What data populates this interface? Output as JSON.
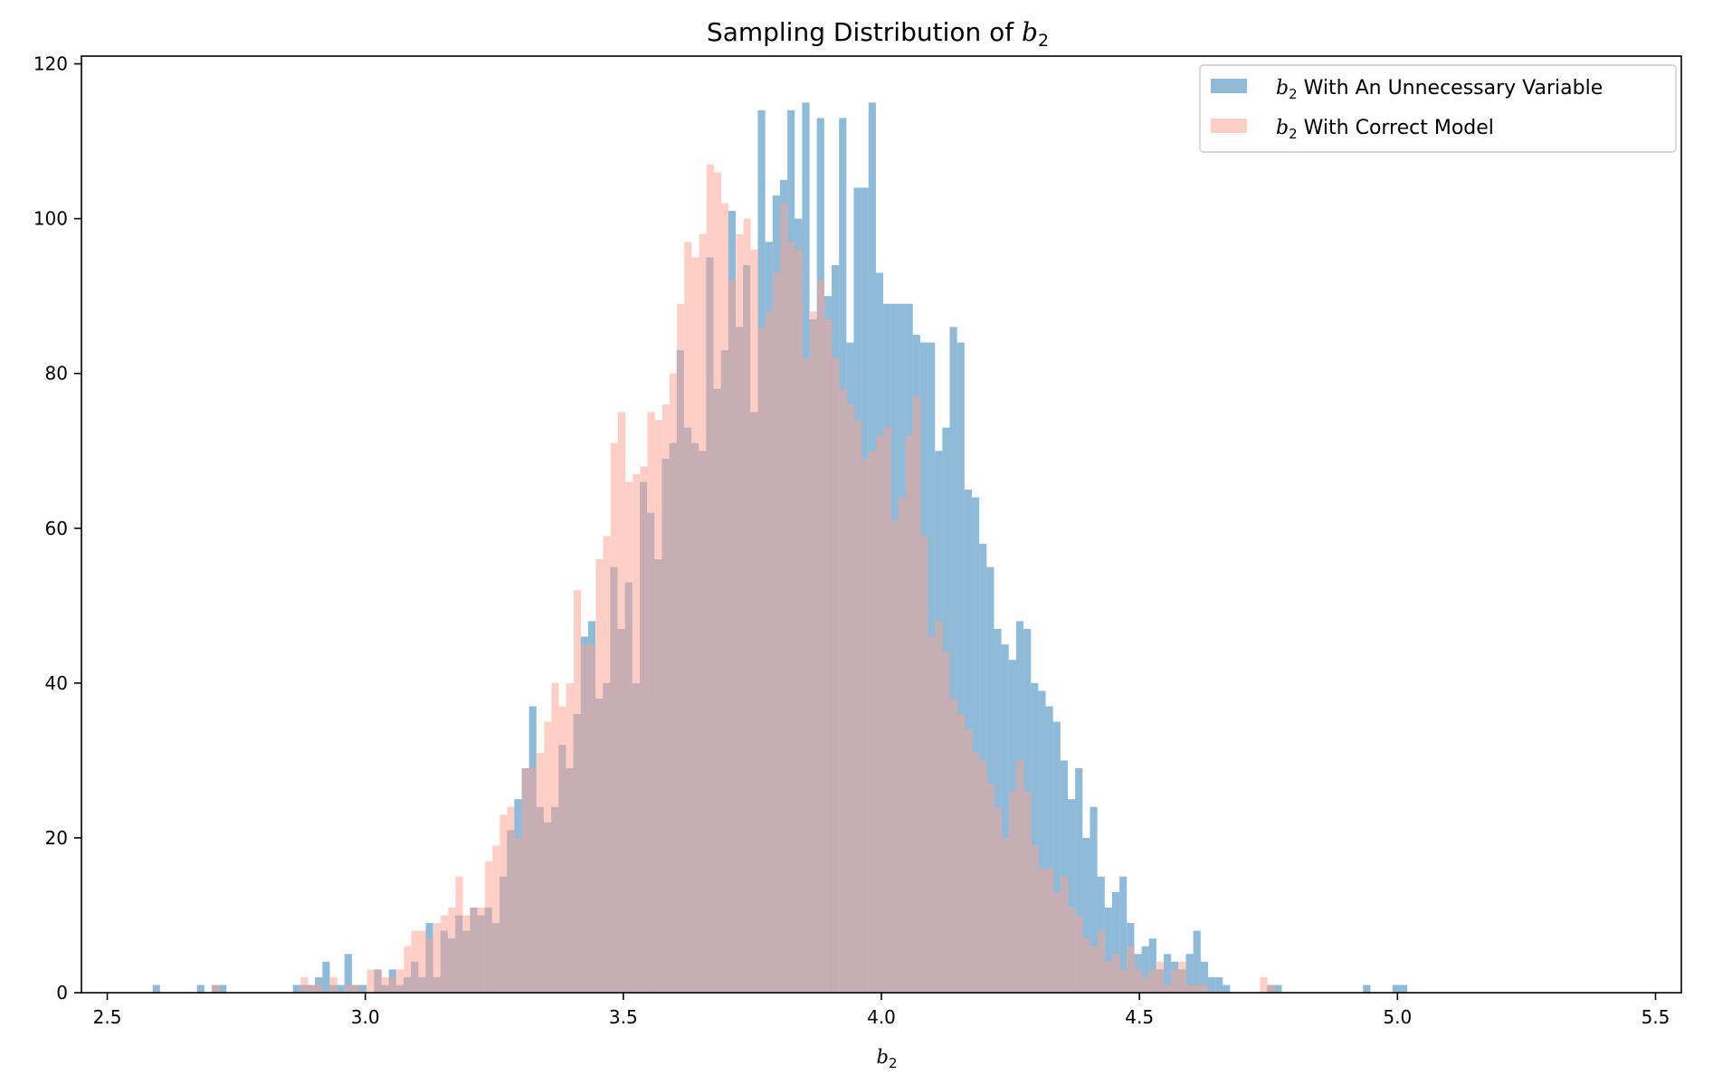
{
  "chart_data": {
    "type": "bar",
    "title_prefix": "Sampling Distribution of ",
    "title_symbol": "b",
    "title_subscript": "2",
    "xlabel_symbol": "b",
    "xlabel_subscript": "2",
    "xlim": [
      2.45,
      5.55
    ],
    "ylim": [
      0,
      121
    ],
    "xticks": [
      2.5,
      3.0,
      3.5,
      4.0,
      4.5,
      5.0,
      5.5
    ],
    "xtick_labels": [
      "2.5",
      "3.0",
      "3.5",
      "4.0",
      "4.5",
      "5.0",
      "5.5"
    ],
    "yticks": [
      0,
      20,
      40,
      60,
      80,
      100,
      120
    ],
    "ytick_labels": [
      "0",
      "20",
      "40",
      "60",
      "80",
      "100",
      "120"
    ],
    "legend_position": "top-right",
    "colors": {
      "blue": "#1f77b4",
      "salmon": "#ff9f8f",
      "axis": "#000000"
    },
    "series": [
      {
        "name_symbol": "b",
        "name_subscript": "2",
        "name_rest": " With An Unnecessary Variable",
        "color": "#1f77b4",
        "alpha": 0.5,
        "bin_start": 2.588,
        "bin_width": 0.0143,
        "values": [
          1,
          0,
          0,
          0,
          0,
          0,
          1,
          0,
          1,
          1,
          0,
          0,
          0,
          0,
          0,
          0,
          0,
          0,
          0,
          1,
          1,
          1,
          2,
          4,
          1,
          1,
          5,
          1,
          1,
          0,
          3,
          1,
          3,
          1,
          2,
          4,
          2,
          9,
          2,
          8,
          7,
          10,
          8,
          11,
          10,
          11,
          9,
          15,
          21,
          25,
          29,
          37,
          24,
          22,
          24,
          32,
          29,
          36,
          46,
          48,
          38,
          40,
          55,
          47,
          53,
          40,
          66,
          62,
          56,
          69,
          71,
          83,
          73,
          71,
          70,
          95,
          78,
          83,
          101,
          86,
          94,
          75,
          114,
          97,
          103,
          105,
          114,
          100,
          115,
          87,
          113,
          90,
          94,
          113,
          84,
          104,
          104,
          115,
          93,
          89,
          89,
          89,
          89,
          85,
          84,
          84,
          70,
          73,
          86,
          84,
          65,
          64,
          58,
          55,
          47,
          45,
          43,
          48,
          47,
          40,
          39,
          37,
          35,
          30,
          25,
          29,
          20,
          24,
          15,
          11,
          13,
          15,
          9,
          5,
          6,
          7,
          3,
          5,
          4,
          3,
          5,
          8,
          4,
          2,
          2,
          1,
          0,
          0,
          0,
          0,
          0,
          1,
          1,
          0,
          0,
          0,
          0,
          0,
          0,
          0,
          0,
          0,
          0,
          0,
          1,
          0,
          0,
          0,
          1,
          1
        ]
      },
      {
        "name_symbol": "b",
        "name_subscript": "2",
        "name_rest": " With Correct Model",
        "color": "#ff9f8f",
        "alpha": 0.5,
        "bin_start": 2.703,
        "bin_width": 0.0143,
        "values": [
          1,
          0,
          0,
          0,
          0,
          0,
          0,
          0,
          0,
          0,
          0,
          0,
          2,
          1,
          1,
          0,
          2,
          0,
          1,
          1,
          0,
          3,
          3,
          2,
          2,
          3,
          6,
          8,
          8,
          7,
          9,
          10,
          11,
          15,
          10,
          11,
          11,
          17,
          19,
          23,
          24,
          20,
          29,
          29,
          31,
          35,
          40,
          37,
          40,
          52,
          45,
          45,
          56,
          59,
          71,
          75,
          66,
          67,
          68,
          75,
          74,
          76,
          80,
          89,
          97,
          95,
          98,
          107,
          106,
          102,
          92,
          98,
          100,
          96,
          86,
          88,
          93,
          102,
          97,
          96,
          82,
          88,
          92,
          87,
          82,
          78,
          76,
          74,
          69,
          70,
          72,
          73,
          61,
          64,
          72,
          77,
          59,
          46,
          48,
          44,
          38,
          36,
          34,
          31,
          30,
          27,
          24,
          20,
          26,
          30,
          26,
          19,
          16,
          16,
          13,
          15,
          11,
          10,
          7,
          6,
          8,
          4,
          5,
          3,
          6,
          3,
          2,
          3,
          4,
          1,
          3,
          4,
          1,
          1,
          1,
          0,
          0,
          0,
          0,
          0,
          0,
          0,
          2,
          1,
          0,
          0,
          0
        ]
      }
    ]
  }
}
